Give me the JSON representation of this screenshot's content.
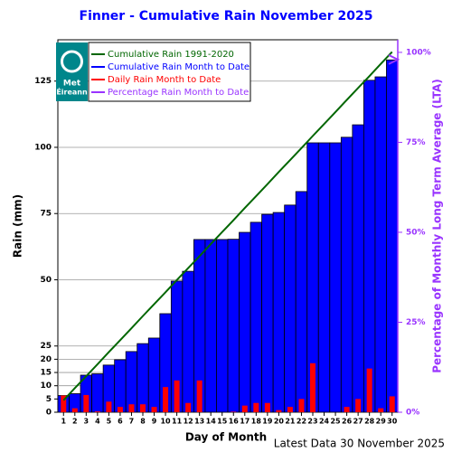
{
  "chart_data": {
    "type": "bar",
    "title": "Finner - Cumulative Rain November   2025",
    "xlabel": "Day of Month",
    "ylabel": "Rain (mm)",
    "y2label": "Percentage of Monthly Long Term Average (LTA)",
    "footer": "Latest Data 30 November 2025",
    "logo_text": [
      "Met",
      "Éireann"
    ],
    "categories": [
      "1",
      "2",
      "3",
      "4",
      "5",
      "6",
      "7",
      "8",
      "9",
      "10",
      "11",
      "12",
      "13",
      "14",
      "15",
      "16",
      "17",
      "18",
      "19",
      "20",
      "21",
      "22",
      "23",
      "24",
      "25",
      "26",
      "27",
      "28",
      "29",
      "30"
    ],
    "series": [
      {
        "name": "Cumulative Rain 1991-2020",
        "color": "#006600",
        "kind": "line",
        "values": [
          4.5,
          9.1,
          13.6,
          18.1,
          22.7,
          27.2,
          31.7,
          36.3,
          40.8,
          45.3,
          49.9,
          54.4,
          58.9,
          63.5,
          68,
          72.5,
          77.1,
          81.6,
          86.1,
          90.7,
          95.2,
          99.7,
          104.3,
          108.8,
          113.3,
          117.9,
          122.4,
          126.9,
          131.5,
          136
        ]
      },
      {
        "name": "Cumulative Rain Month to Date",
        "color": "#0000ff",
        "kind": "bar",
        "values": [
          6.3,
          7,
          14,
          14.5,
          17.8,
          19.8,
          22.9,
          25.9,
          28,
          37.2,
          49.5,
          53.2,
          65.2,
          65.2,
          65.2,
          65.3,
          67.9,
          71.7,
          74.7,
          75.4,
          78.2,
          83.3,
          101.7,
          101.7,
          101.7,
          103.8,
          108.5,
          125.3,
          126.6,
          133
        ]
      },
      {
        "name": "Daily Rain Month to Date",
        "color": "#ff0000",
        "kind": "thinbar",
        "values": [
          6.3,
          1.5,
          6.5,
          0.3,
          4,
          2,
          3,
          3,
          2,
          9.5,
          12,
          3.5,
          12,
          0,
          0,
          0.2,
          2.5,
          3.5,
          3.5,
          0.8,
          2,
          5,
          18.5,
          0,
          0,
          2,
          5,
          16.5,
          1.5,
          6
        ]
      },
      {
        "name": "Percentage Rain Month to Date",
        "color": "#9933ff",
        "kind": "arrow",
        "axis": "y2",
        "values": [
          null,
          null,
          null,
          null,
          null,
          null,
          null,
          null,
          null,
          null,
          null,
          null,
          null,
          null,
          null,
          null,
          null,
          null,
          null,
          null,
          null,
          null,
          null,
          null,
          null,
          null,
          null,
          null,
          null,
          98
        ]
      }
    ],
    "ylim": [
      0,
      140.6
    ],
    "yticks": [
      0,
      5,
      10,
      15,
      20,
      25,
      50,
      75,
      100,
      125
    ],
    "y2lim": [
      0,
      103.5
    ],
    "y2ticks": [
      {
        "value": 0,
        "label": "0%"
      },
      {
        "value": 25,
        "label": "25%"
      },
      {
        "value": 50,
        "label": "50%"
      },
      {
        "value": 75,
        "label": "75%"
      },
      {
        "value": 100,
        "label": "100%"
      }
    ],
    "grid": true,
    "legend": "upper left"
  }
}
